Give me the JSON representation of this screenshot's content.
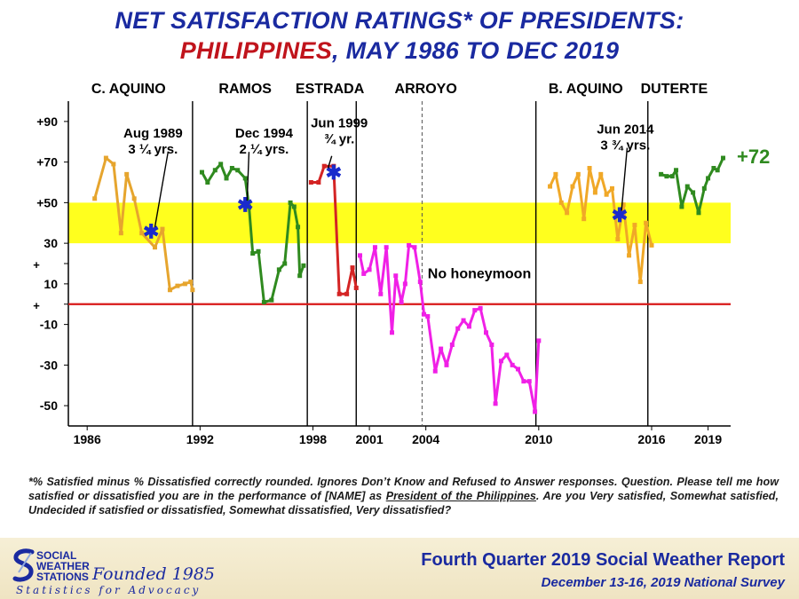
{
  "title": {
    "line1": "NET SATISFACTION  RATINGS* OF PRESIDENTS:",
    "line2_red": "PHILIPPINES",
    "line2_blue": ", MAY 1986 TO DEC 2019"
  },
  "colors": {
    "title_blue": "#1a2aa0",
    "title_red": "#c0141c",
    "band_yellow": "#ffff1e",
    "zero_line": "#d81818",
    "c_aquino": "#e6a52e",
    "ramos": "#2f8a1f",
    "estrada": "#d42424",
    "arroyo": "#f020e6",
    "b_aquino": "#f0a828",
    "duterte": "#2f8a1f",
    "marker": "#1a2acc",
    "callout_green": "#2f8a1f"
  },
  "chart_data": {
    "type": "line",
    "ylim": [
      -60,
      100
    ],
    "xlim": [
      1985,
      2020.2
    ],
    "y_ticks": [
      {
        "v": 90,
        "label": "+90"
      },
      {
        "v": 70,
        "label": "+70"
      },
      {
        "v": 50,
        "label": "+50"
      },
      {
        "v": 30,
        "label": "30"
      },
      {
        "v": 10,
        "label": "10"
      },
      {
        "v": -10,
        "label": "-10"
      },
      {
        "v": -30,
        "label": "-30"
      },
      {
        "v": -50,
        "label": "-50"
      }
    ],
    "y_plus_marks": [
      20,
      0
    ],
    "y_plus_symbol": "+",
    "x_ticks": [
      {
        "v": 1986,
        "label": "1986"
      },
      {
        "v": 1992,
        "label": "1992"
      },
      {
        "v": 1998,
        "label": "1998"
      },
      {
        "v": 2001,
        "label": "2001"
      },
      {
        "v": 2004,
        "label": "2004"
      },
      {
        "v": 2010,
        "label": "2010"
      },
      {
        "v": 2016,
        "label": "2016"
      },
      {
        "v": 2019,
        "label": "2019"
      }
    ],
    "band": {
      "from": 30,
      "to": 50
    },
    "zero_line": 0,
    "dividers": [
      {
        "x": 1991.6,
        "style": "solid"
      },
      {
        "x": 1997.7,
        "style": "solid"
      },
      {
        "x": 2000.3,
        "style": "solid"
      },
      {
        "x": 2003.8,
        "style": "dashed"
      },
      {
        "x": 2009.85,
        "style": "solid"
      },
      {
        "x": 2015.8,
        "style": "solid"
      }
    ],
    "president_labels": [
      {
        "x": 1988.2,
        "text": "C. AQUINO"
      },
      {
        "x": 1994.4,
        "text": "RAMOS"
      },
      {
        "x": 1998.9,
        "text": "ESTRADA"
      },
      {
        "x": 2004.0,
        "text": "ARROYO"
      },
      {
        "x": 2012.5,
        "text": "B. AQUINO"
      },
      {
        "x": 2017.2,
        "text": "DUTERTE"
      }
    ],
    "series": [
      {
        "key": "c_aquino",
        "x": [
          1986.4,
          1987.0,
          1987.4,
          1987.8,
          1988.1,
          1988.5,
          1988.9,
          1989.6,
          1990.0,
          1990.4,
          1990.8,
          1991.2,
          1991.5,
          1991.6
        ],
        "y": [
          52,
          72,
          69,
          35,
          64,
          52,
          35,
          28,
          37,
          7,
          9,
          10,
          11,
          7
        ]
      },
      {
        "key": "ramos",
        "x": [
          1992.1,
          1992.4,
          1992.8,
          1993.1,
          1993.4,
          1993.7,
          1994.0,
          1994.4,
          1994.6,
          1994.8,
          1995.1,
          1995.4,
          1995.8,
          1996.2,
          1996.5,
          1996.8,
          1997.0,
          1997.2,
          1997.3,
          1997.5
        ],
        "y": [
          65,
          60,
          66,
          69,
          62,
          67,
          66,
          62,
          48,
          25,
          26,
          1,
          2,
          17,
          20,
          50,
          48,
          38,
          14,
          19
        ]
      },
      {
        "key": "estrada",
        "x": [
          1997.9,
          1998.3,
          1998.6,
          1999.1,
          1999.4,
          1999.8,
          2000.1,
          2000.3
        ],
        "y": [
          60,
          60,
          68,
          68,
          5,
          5,
          18,
          8
        ]
      },
      {
        "key": "arroyo",
        "x": [
          2000.5,
          2000.7,
          2001.0,
          2001.3,
          2001.6,
          2001.9,
          2002.2,
          2002.4,
          2002.7,
          2002.9,
          2003.1,
          2003.4,
          2003.7,
          2003.9,
          2004.1,
          2004.5,
          2004.8,
          2005.1,
          2005.4,
          2005.7,
          2006.0,
          2006.3,
          2006.6,
          2006.9,
          2007.2,
          2007.5,
          2007.7,
          2008.0,
          2008.3,
          2008.6,
          2008.9,
          2009.2,
          2009.5,
          2009.8,
          2010.0
        ],
        "y": [
          24,
          15,
          17,
          28,
          5,
          28,
          -14,
          14,
          1,
          10,
          29,
          28,
          11,
          -5,
          -6,
          -33,
          -22,
          -30,
          -20,
          -12,
          -8,
          -11,
          -3,
          -2,
          -14,
          -20,
          -49,
          -28,
          -25,
          -30,
          -32,
          -38,
          -38,
          -53,
          -18
        ]
      },
      {
        "key": "b_aquino",
        "x": [
          2010.6,
          2010.9,
          2011.2,
          2011.5,
          2011.8,
          2012.1,
          2012.4,
          2012.7,
          2013.0,
          2013.3,
          2013.6,
          2013.9,
          2014.2,
          2014.5,
          2014.8,
          2015.1,
          2015.4,
          2015.7,
          2016.0
        ],
        "y": [
          58,
          64,
          50,
          45,
          58,
          64,
          42,
          67,
          55,
          64,
          54,
          57,
          32,
          49,
          24,
          39,
          11,
          40,
          29
        ]
      },
      {
        "key": "duterte",
        "x": [
          2016.5,
          2016.8,
          2017.1,
          2017.3,
          2017.6,
          2017.9,
          2018.2,
          2018.5,
          2018.8,
          2019.0,
          2019.3,
          2019.5,
          2019.8
        ],
        "y": [
          64,
          63,
          63,
          66,
          48,
          58,
          55,
          45,
          57,
          62,
          67,
          66,
          72
        ]
      }
    ],
    "markers": [
      {
        "x": 1989.4,
        "y": 36
      },
      {
        "x": 1994.4,
        "y": 49
      },
      {
        "x": 1999.1,
        "y": 65
      },
      {
        "x": 2014.3,
        "y": 44
      }
    ],
    "marker_symbol": "✱",
    "annotations": [
      {
        "x": 1989.5,
        "y": 82,
        "lines": [
          "Aug 1989",
          "3 ¼ yrs."
        ]
      },
      {
        "x": 1995.4,
        "y": 82,
        "lines": [
          "Dec 1994",
          "2 ¼ yrs."
        ]
      },
      {
        "x": 1999.4,
        "y": 87,
        "lines": [
          "Jun 1999",
          "¾ yr."
        ]
      },
      {
        "x": 2014.6,
        "y": 84,
        "lines": [
          "Jun 2014",
          "3 ¾ yrs."
        ]
      }
    ],
    "honeymoon_label": {
      "x": 2004.1,
      "y": 15,
      "text": "No honeymoon"
    },
    "latest_label": "+72"
  },
  "footnote": {
    "part1": "*% Satisfied minus % Dissatisfied correctly rounded. Ignores Don’t Know and Refused to Answer responses. Question. Please tell me how satisfied or dissatisfied you are in the performance of [NAME] as ",
    "underlined": "President of the Philippines",
    "part2": ".  Are you Very satisfied, Somewhat satisfied, Undecided if satisfied or dissatisfied, Somewhat dissatisfied, Very dissatisfied?"
  },
  "footer": {
    "logo_lines": [
      "SOCIAL",
      "WEATHER",
      "STATIONS"
    ],
    "founded": "Founded 1985",
    "tagline": "Statistics for Advocacy",
    "report_title": "Fourth Quarter 2019 Social Weather Report",
    "report_sub": "December 13-16, 2019 National Survey"
  }
}
